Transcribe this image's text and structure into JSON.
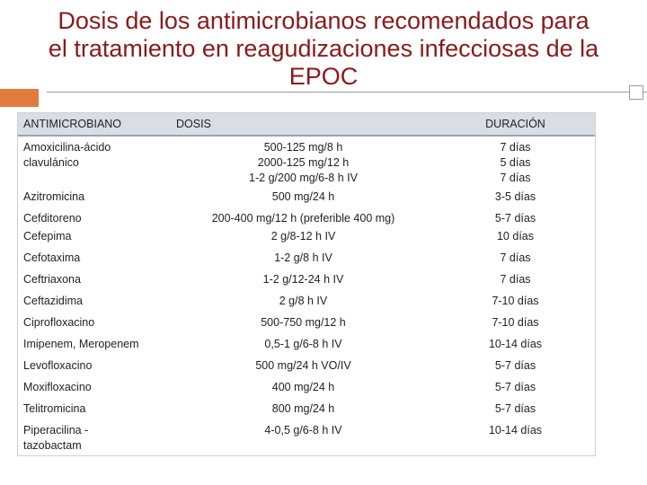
{
  "title": {
    "line1": "Dosis  de los antimicrobianos recomendados para",
    "line2": "el tratamiento en reagudizaciones infecciosas de la",
    "line3": "EPOC"
  },
  "table": {
    "headers": [
      "ANTIMICROBIANO",
      "DOSIS",
      "DURACIÓN"
    ],
    "rows": [
      {
        "drug": "Amoxicilina-ácido\nclavulánico",
        "dose": "500-125 mg/8 h\n2000-125 mg/12 h\n1-2 g/200 mg/6-8 h  IV",
        "duration": "7 días\n5 días\n7 días"
      },
      {
        "drug": "Azitromicina",
        "dose": "500 mg/24 h",
        "duration": "3-5 días"
      },
      {
        "drug": "Cefditoreno",
        "dose": "200-400 mg/12 h  (preferible 400 mg)",
        "duration": "5-7 días"
      },
      {
        "drug": "Cefepima",
        "dose": "2 g/8-12 h IV",
        "duration": "10 días"
      },
      {
        "drug": "Cefotaxima",
        "dose": "1-2 g/8 h IV",
        "duration": "7 días"
      },
      {
        "drug": "Ceftriaxona",
        "dose": "1-2 g/12-24 h IV",
        "duration": "7 días"
      },
      {
        "drug": "Ceftazidima",
        "dose": "2 g/8 h IV",
        "duration": "7-10 días"
      },
      {
        "drug": "Ciprofloxacino",
        "dose": "500-750 mg/12 h",
        "duration": "7-10 días"
      },
      {
        "drug": "Imipenem, Meropenem",
        "dose": "0,5-1 g/6-8 h IV",
        "duration": "10-14 días"
      },
      {
        "drug": "Levofloxacino",
        "dose": "500 mg/24 h VO/IV",
        "duration": "5-7 días"
      },
      {
        "drug": "Moxifloxacino",
        "dose": "400 mg/24 h",
        "duration": "5-7 días"
      },
      {
        "drug": "Telitromicina",
        "dose": "800 mg/24 h",
        "duration": "5-7 días"
      },
      {
        "drug": "Piperacilina -\ntazobactam",
        "dose": "4-0,5 g/6-8 h IV",
        "duration": "10-14 días"
      }
    ]
  },
  "colors": {
    "title": "#8b1a1a",
    "header_bg": "#d9dde6",
    "accent": "#e07b3c"
  }
}
